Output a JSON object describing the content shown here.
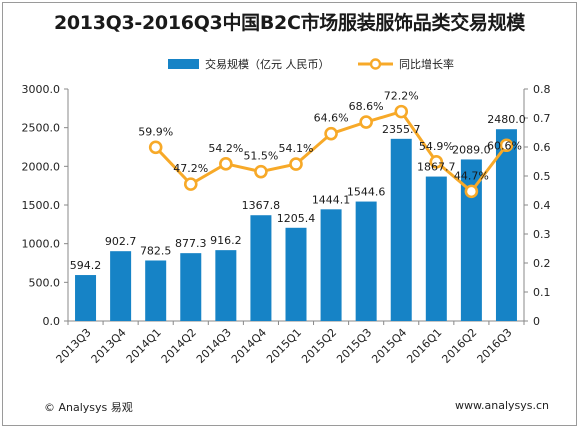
{
  "chart_data": {
    "type": "bar",
    "title": "2013Q3-2016Q3中国B2C市场服装服饰品类交易规模",
    "categories": [
      "2013Q3",
      "2013Q4",
      "2014Q1",
      "2014Q2",
      "2014Q3",
      "2014Q4",
      "2015Q1",
      "2015Q2",
      "2015Q3",
      "2015Q4",
      "2016Q1",
      "2016Q2",
      "2016Q3"
    ],
    "series": [
      {
        "name": "交易规模（亿元 人民币）",
        "type": "bar",
        "axis": "left",
        "color": "#1683c6",
        "values": [
          594.2,
          902.7,
          782.5,
          877.3,
          916.2,
          1367.8,
          1205.4,
          1444.1,
          1544.6,
          2355.7,
          1867.7,
          2089.0,
          2480.0
        ],
        "labels": [
          "594.2",
          "902.7",
          "782.5",
          "877.3",
          "916.2",
          "1367.8",
          "1205.4",
          "1444.1",
          "1544.6",
          "2355.7",
          "1867.7",
          "2089.0",
          "2480.0"
        ]
      },
      {
        "name": "同比增长率",
        "type": "line",
        "axis": "right",
        "color": "#f7a928",
        "values": [
          null,
          null,
          0.599,
          0.472,
          0.542,
          0.515,
          0.541,
          0.646,
          0.686,
          0.722,
          0.549,
          0.447,
          0.606
        ],
        "labels": [
          "",
          "",
          "59.9%",
          "47.2%",
          "54.2%",
          "51.5%",
          "54.1%",
          "64.6%",
          "68.6%",
          "72.2%",
          "54.9%",
          "44.7%",
          "60.6%"
        ]
      }
    ],
    "yleft": {
      "lim": [
        0,
        3000
      ],
      "ticks": [
        "0.0",
        "500.0",
        "1000.0",
        "1500.0",
        "2000.0",
        "2500.0",
        "3000.0"
      ]
    },
    "yright": {
      "lim": [
        0,
        0.8
      ],
      "ticks": [
        "0",
        "0.1",
        "0.2",
        "0.3",
        "0.4",
        "0.5",
        "0.6",
        "0.7",
        "0.8"
      ]
    },
    "legend_position": "top"
  },
  "footer": {
    "left": "© Analysys 易观",
    "right": "www.analysys.cn"
  }
}
